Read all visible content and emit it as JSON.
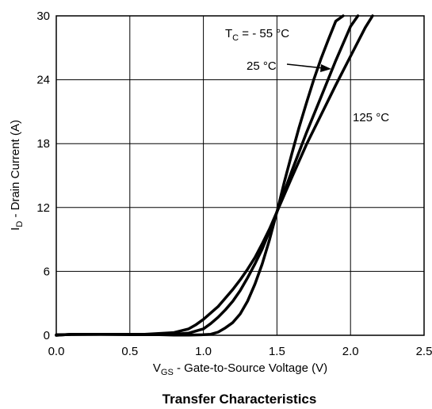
{
  "chart_data": {
    "type": "line",
    "title": "Transfer Characteristics",
    "xlabel": {
      "main": "V",
      "sub": "GS",
      "rest": " - Gate-to-Source Voltage (V)"
    },
    "ylabel": {
      "main": "I",
      "sub": "D",
      "rest": " - Drain Current (A)"
    },
    "xlim": [
      0,
      2.5
    ],
    "ylim": [
      0,
      30
    ],
    "xticks": [
      "0.0",
      "0.5",
      "1.0",
      "1.5",
      "2.0",
      "2.5"
    ],
    "yticks": [
      "0",
      "6",
      "12",
      "18",
      "24",
      "30"
    ],
    "grid": true,
    "series": [
      {
        "name": "- 55 °C",
        "x": [
          0.0,
          0.1,
          0.3,
          0.5,
          0.7,
          0.8,
          0.9,
          1.0,
          1.05,
          1.1,
          1.15,
          1.2,
          1.25,
          1.3,
          1.35,
          1.4,
          1.45,
          1.5,
          1.55,
          1.6,
          1.65,
          1.7,
          1.75,
          1.8,
          1.85,
          1.9,
          1.95
        ],
        "y": [
          0.0,
          0.1,
          0.1,
          0.05,
          0.05,
          0.02,
          0.02,
          0.05,
          0.1,
          0.3,
          0.7,
          1.2,
          2.0,
          3.2,
          4.8,
          6.7,
          9.0,
          11.6,
          14.4,
          17.0,
          19.5,
          21.8,
          24.0,
          26.0,
          27.8,
          29.5,
          30.0
        ]
      },
      {
        "name": "25 °C",
        "x": [
          0.0,
          0.3,
          0.6,
          0.8,
          0.9,
          1.0,
          1.05,
          1.1,
          1.15,
          1.2,
          1.25,
          1.3,
          1.35,
          1.4,
          1.45,
          1.5,
          1.55,
          1.6,
          1.7,
          1.8,
          1.9,
          2.0,
          2.05
        ],
        "y": [
          0.05,
          0.1,
          0.1,
          0.1,
          0.2,
          0.6,
          1.1,
          1.7,
          2.4,
          3.2,
          4.2,
          5.4,
          6.7,
          8.1,
          9.8,
          11.6,
          13.5,
          15.4,
          19.0,
          22.4,
          25.8,
          29.0,
          30.0
        ]
      },
      {
        "name": "125 °C",
        "x": [
          0.0,
          0.1,
          0.3,
          0.6,
          0.8,
          0.9,
          0.95,
          1.0,
          1.05,
          1.1,
          1.15,
          1.2,
          1.25,
          1.3,
          1.35,
          1.4,
          1.45,
          1.5,
          1.55,
          1.6,
          1.7,
          1.8,
          1.9,
          2.0,
          2.1,
          2.15
        ],
        "y": [
          0.0,
          0.1,
          0.1,
          0.1,
          0.25,
          0.6,
          1.0,
          1.5,
          2.1,
          2.7,
          3.5,
          4.3,
          5.2,
          6.2,
          7.3,
          8.6,
          10.0,
          11.6,
          13.2,
          14.8,
          17.9,
          20.7,
          23.5,
          26.2,
          28.9,
          30.0
        ]
      }
    ],
    "annotations": {
      "tc_prefix": "T",
      "tc_sub": "C",
      "tc_rest": " = - 55 °C",
      "label_25": "25 °C",
      "label_125": "125 °C"
    }
  }
}
